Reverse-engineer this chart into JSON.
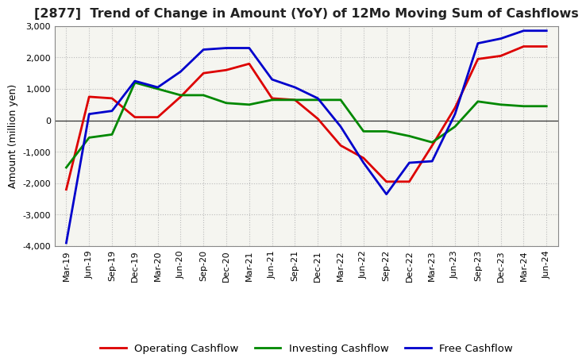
{
  "title": "[2877]  Trend of Change in Amount (YoY) of 12Mo Moving Sum of Cashflows",
  "ylabel": "Amount (million yen)",
  "x_labels": [
    "Mar-19",
    "Jun-19",
    "Sep-19",
    "Dec-19",
    "Mar-20",
    "Jun-20",
    "Sep-20",
    "Dec-20",
    "Mar-21",
    "Jun-21",
    "Sep-21",
    "Dec-21",
    "Mar-22",
    "Jun-22",
    "Sep-22",
    "Dec-22",
    "Mar-23",
    "Jun-23",
    "Sep-23",
    "Dec-23",
    "Mar-24",
    "Jun-24"
  ],
  "operating": [
    -2200,
    750,
    700,
    100,
    100,
    750,
    1500,
    1600,
    1800,
    700,
    650,
    50,
    -800,
    -1200,
    -1950,
    -1950,
    -800,
    400,
    1950,
    2050,
    2350,
    2350
  ],
  "investing": [
    -1500,
    -550,
    -450,
    1200,
    1000,
    800,
    800,
    550,
    500,
    650,
    650,
    650,
    650,
    -350,
    -350,
    -500,
    -700,
    -200,
    600,
    500,
    450,
    450
  ],
  "free": [
    -3900,
    200,
    300,
    1250,
    1050,
    1550,
    2250,
    2300,
    2300,
    1300,
    1050,
    700,
    -200,
    -1350,
    -2350,
    -1350,
    -1300,
    200,
    2450,
    2600,
    2850,
    2850
  ],
  "operating_color": "#dd0000",
  "investing_color": "#008800",
  "free_color": "#0000cc",
  "ylim": [
    -4000,
    3000
  ],
  "yticks": [
    -4000,
    -3000,
    -2000,
    -1000,
    0,
    1000,
    2000,
    3000
  ],
  "background_color": "#ffffff",
  "plot_bg_color": "#f5f5f0",
  "grid_color": "#bbbbbb",
  "title_fontsize": 11.5,
  "axis_fontsize": 9,
  "tick_fontsize": 8,
  "legend_fontsize": 9.5,
  "linewidth": 2.0
}
